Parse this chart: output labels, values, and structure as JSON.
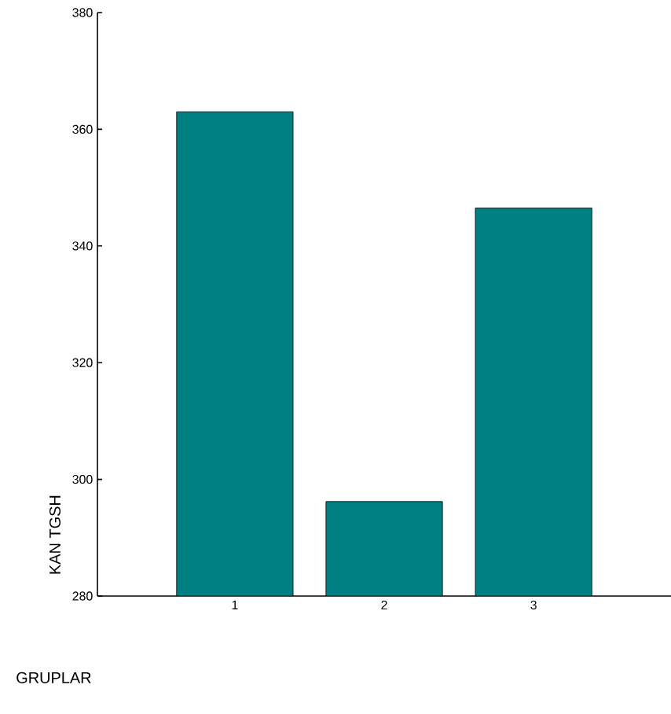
{
  "chart_data": {
    "type": "bar",
    "xlabel": "GRUPLAR",
    "ylabel": "KAN TGSH",
    "categories": [
      "1",
      "2",
      "3"
    ],
    "values": [
      363,
      296.2,
      346.5
    ],
    "color": "#008080",
    "ylim": [
      280,
      380
    ],
    "yticks": [
      280,
      300,
      320,
      340,
      360,
      380
    ]
  }
}
